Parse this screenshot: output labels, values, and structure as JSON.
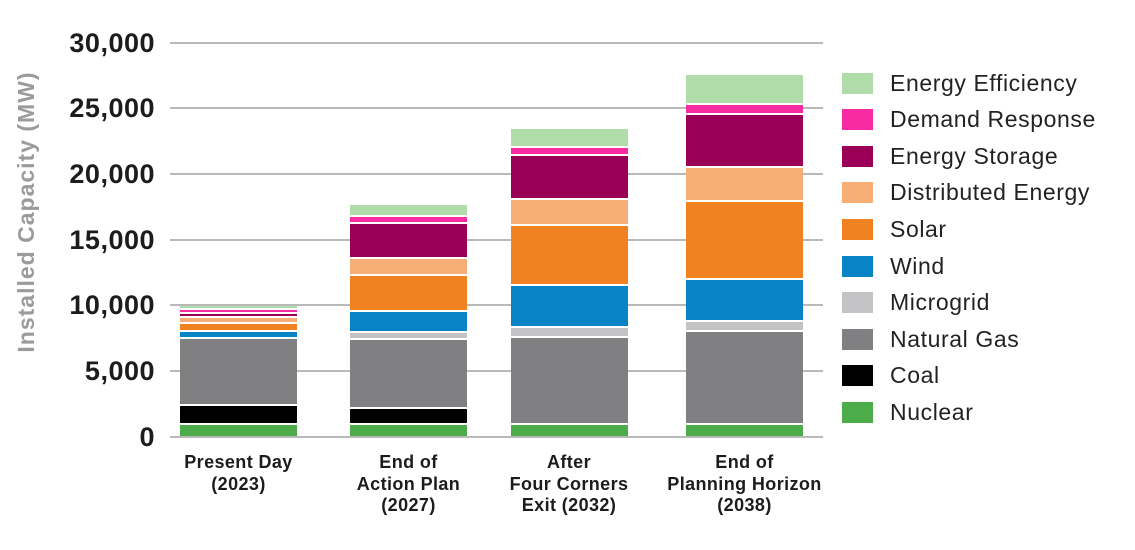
{
  "chart_data": {
    "type": "bar",
    "stacked": true,
    "ylabel": "Installed Capacity (MW)",
    "xlabel": "",
    "ylim": [
      0,
      30000
    ],
    "ytick_interval": 5000,
    "y_ticks": [
      "0",
      "5,000",
      "10,000",
      "15,000",
      "20,000",
      "25,000",
      "30,000"
    ],
    "grid": true,
    "gridline_color": "#b9b9b9",
    "legend_position": "right",
    "categories": [
      "Present Day (2023)",
      "End of Action Plan (2027)",
      "After Four Corners Exit (2032)",
      "End of Planning Horizon (2038)"
    ],
    "category_lines": [
      [
        "Present Day",
        "(2023)"
      ],
      [
        "End of",
        "Action Plan",
        "(2027)"
      ],
      [
        "After",
        "Four Corners",
        "Exit (2032)"
      ],
      [
        "End of",
        "Planning Horizon",
        "(2038)"
      ]
    ],
    "series": [
      {
        "name": "Nuclear",
        "color": "#4bac49",
        "values": [
          1050,
          1050,
          1050,
          1050
        ]
      },
      {
        "name": "Coal",
        "color": "#000000",
        "values": [
          1400,
          1200,
          0,
          0
        ]
      },
      {
        "name": "Natural Gas",
        "color": "#808083",
        "values": [
          5100,
          5250,
          6600,
          7050
        ]
      },
      {
        "name": "Microgrid",
        "color": "#c3c3c5",
        "values": [
          0,
          550,
          800,
          800
        ]
      },
      {
        "name": "Wind",
        "color": "#0883c5",
        "values": [
          550,
          1550,
          3200,
          3200
        ]
      },
      {
        "name": "Solar",
        "color": "#f08221",
        "values": [
          650,
          2800,
          4500,
          5900
        ]
      },
      {
        "name": "Distributed Energy",
        "color": "#f8ae77",
        "values": [
          450,
          1250,
          2000,
          2600
        ]
      },
      {
        "name": "Energy Storage",
        "color": "#9a0058",
        "values": [
          250,
          2650,
          3350,
          4000
        ]
      },
      {
        "name": "Demand Response",
        "color": "#f92ba2",
        "values": [
          300,
          550,
          650,
          800
        ]
      },
      {
        "name": "Energy Efficiency",
        "color": "#afdca9",
        "values": [
          200,
          750,
          1300,
          2100
        ]
      }
    ],
    "legend": [
      "Energy Efficiency",
      "Demand Response",
      "Energy Storage",
      "Distributed Energy",
      "Solar",
      "Wind",
      "Microgrid",
      "Natural Gas",
      "Coal",
      "Nuclear"
    ]
  }
}
